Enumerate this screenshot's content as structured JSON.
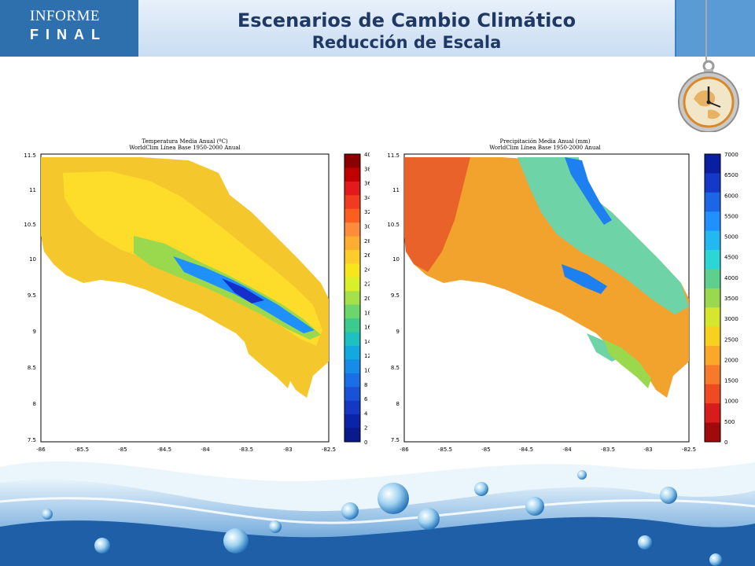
{
  "badge": {
    "line1": "INFORME",
    "line2": "FINAL"
  },
  "title": {
    "line1": "Escenarios de Cambio Climático",
    "line2": "Reducción de Escala"
  },
  "maps": [
    {
      "title": "Temperatura Media Anual (ºC)",
      "subtitle": "WorldClim Línea Base 1950-2000 Anual",
      "xticks": [
        "-86",
        "-85.5",
        "-85",
        "-84.5",
        "-84",
        "-83.5",
        "-83",
        "-82.5"
      ],
      "yticks": [
        "11.5",
        "11",
        "10.5",
        "10",
        "9.5",
        "9",
        "8.5",
        "8",
        "7.5"
      ],
      "colorbar": [
        "40",
        "38",
        "36",
        "34",
        "32",
        "30",
        "28",
        "26",
        "24",
        "22",
        "20",
        "18",
        "16",
        "14",
        "12",
        "10",
        "8",
        "6",
        "4",
        "2",
        "0"
      ],
      "palette": [
        "#8b0000",
        "#c00000",
        "#e31a1c",
        "#f03b20",
        "#fd5e20",
        "#fd8d3c",
        "#fdae31",
        "#fecc2c",
        "#f7e51e",
        "#d9ef2a",
        "#a6e04a",
        "#6cd66d",
        "#3ccb8e",
        "#1ec0c0",
        "#14a8e0",
        "#168ce8",
        "#1a6fe6",
        "#1a52d6",
        "#1438c2",
        "#0c22a8",
        "#081a8c"
      ],
      "colors": {
        "land": "#f4c72c",
        "mid": "#9ad84d",
        "high": "#1e90ff",
        "peak": "#1530c8"
      }
    },
    {
      "title": "Precipitación Media Anual (mm)",
      "subtitle": "WorldClim Línea Base 1950-2000 Anual",
      "xticks": [
        "-86",
        "-85.5",
        "-85",
        "-84.5",
        "-84",
        "-83.5",
        "-83",
        "-82.5"
      ],
      "yticks": [
        "11.5",
        "11",
        "10.5",
        "10",
        "9.5",
        "9",
        "8.5",
        "8",
        "7.5"
      ],
      "colorbar": [
        "7000",
        "6500",
        "6000",
        "5500",
        "5000",
        "4500",
        "4000",
        "3500",
        "3000",
        "2500",
        "2000",
        "1500",
        "1000",
        "500",
        "0"
      ],
      "palette": [
        "#0a1ea0",
        "#1438c8",
        "#1a66e6",
        "#1e90ff",
        "#22b8f0",
        "#2cd6d6",
        "#5cd08c",
        "#9ad84d",
        "#d6e62c",
        "#f7d020",
        "#fba72a",
        "#f77a2a",
        "#ef4a22",
        "#d81c1c",
        "#a00a0a"
      ],
      "colors": {
        "land": "#f2a32e",
        "dry": "#e8622a",
        "wet": "#6fd3a8",
        "veryWet": "#1e7ff0"
      }
    }
  ]
}
